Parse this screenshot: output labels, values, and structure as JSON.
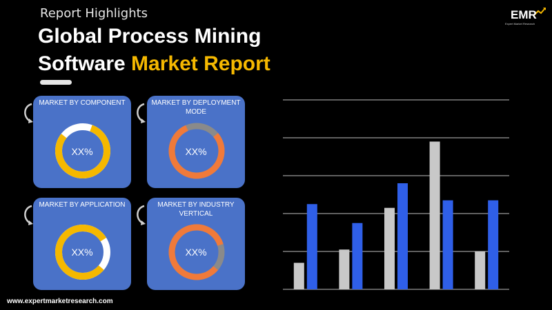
{
  "header": {
    "kicker": "Report Highlights",
    "title_line1": "Global Process Mining",
    "title_line2_plain": "Software",
    "title_line2_highlight": "Market Report"
  },
  "logo": {
    "text": "EMR",
    "tagline": "Expert Market Research",
    "icon": "emr-logo-icon"
  },
  "cards": [
    {
      "label": "MARKET BY COMPONENT",
      "value": "XX%",
      "ring_color": "#f5b800",
      "ring_bg": "#ffffff"
    },
    {
      "label": "MARKET BY DEPLOYMENT MODE",
      "value": "XX%",
      "ring_color": "#f07a3a",
      "ring_bg": "#8a8a8a"
    },
    {
      "label": "MARKET BY APPLICATION",
      "value": "XX%",
      "ring_color": "#f5b800",
      "ring_bg": "#ffffff"
    },
    {
      "label": "MARKET BY INDUSTRY VERTICAL",
      "value": "XX%",
      "ring_color": "#f07a3a",
      "ring_bg": "#8a8a8a"
    }
  ],
  "footer": {
    "url": "www.expertmarketresearch.com"
  },
  "colors": {
    "background": "#000000",
    "card": "#4a72c8",
    "accent": "#f5b800",
    "grid": "#bfbfbf"
  },
  "chart_data": {
    "type": "bar",
    "categories": [
      "",
      "",
      "",
      "",
      ""
    ],
    "series": [
      {
        "values": [
          0.7,
          1.05,
          2.15,
          3.9,
          1.0
        ],
        "color": "#c8c8c8"
      },
      {
        "values": [
          2.25,
          1.75,
          2.8,
          2.35,
          2.35
        ],
        "color": "#2f5fe8"
      }
    ],
    "ylim": [
      0,
      5
    ],
    "grid": true,
    "title": "",
    "xlabel": "",
    "ylabel": ""
  }
}
